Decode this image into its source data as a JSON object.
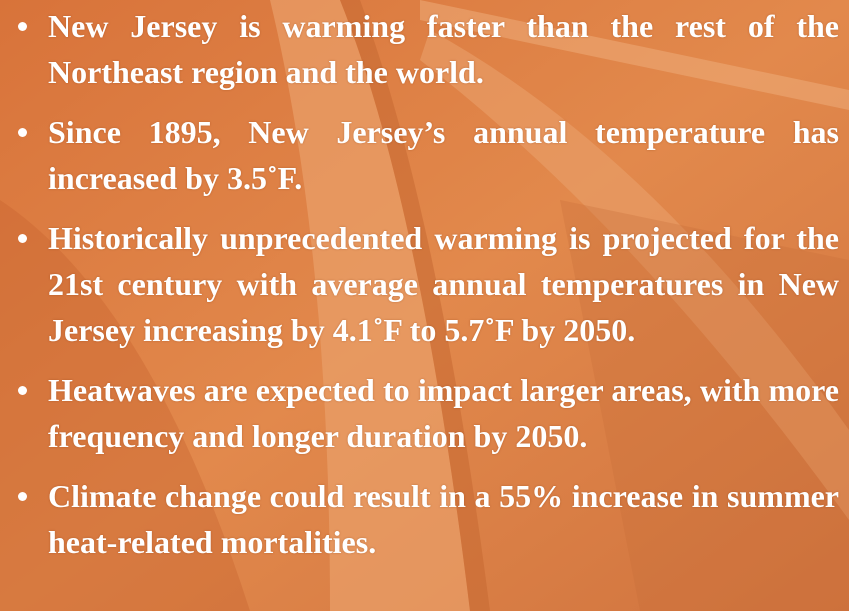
{
  "bullets": [
    "New Jersey is warming faster than the rest of the Northeast region and the world.",
    "Since 1895, New Jersey’s annual temperature has increased by 3.5˚F.",
    "Historically unprecedented warming is projected for the 21st century with average annual temperatures in New Jersey increasing by 4.1˚F to 5.7˚F by 2050.",
    "Heatwaves are expected to impact larger areas, with more frequency and longer duration by 2050.",
    "Climate change could result in a 55% increase in summer heat-related mortalities."
  ]
}
